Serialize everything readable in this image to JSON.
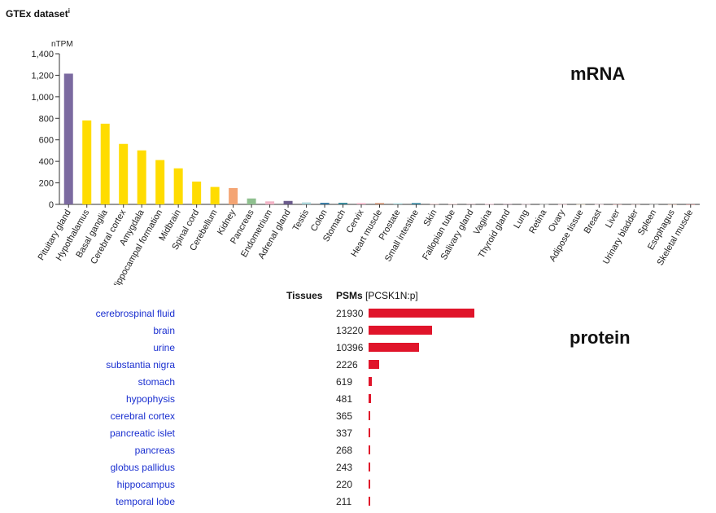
{
  "header": {
    "title": "GTEx dataset",
    "info_mark": "i"
  },
  "labels": {
    "mrna": "mRNA",
    "protein": "protein"
  },
  "chart_data": [
    {
      "type": "bar",
      "ylabel": "nTPM",
      "ylim": [
        0,
        1400
      ],
      "yticks": [
        "0",
        "200",
        "400",
        "600",
        "800",
        "1,000",
        "1,200",
        "1,400"
      ],
      "ytick_values": [
        0,
        200,
        400,
        600,
        800,
        1000,
        1200,
        1400
      ],
      "categories": [
        "Pituitary gland",
        "Hypothalamus",
        "Basal ganglia",
        "Cerebral cortex",
        "Amygdala",
        "Hippocampal formation",
        "Midbrain",
        "Spinal cord",
        "Cerebellum",
        "Kidney",
        "Pancreas",
        "Endometrium",
        "Adrenal gland",
        "Testis",
        "Colon",
        "Stomach",
        "Cervix",
        "Heart muscle",
        "Prostate",
        "Small intestine",
        "Skin",
        "Fallopian tube",
        "Salivary gland",
        "Vagina",
        "Thyroid gland",
        "Lung",
        "Retina",
        "Ovary",
        "Adipose tissue",
        "Breast",
        "Liver",
        "Urinary bladder",
        "Spleen",
        "Esophagus",
        "Skeletal muscle"
      ],
      "values": [
        1215,
        780,
        750,
        562,
        502,
        412,
        335,
        212,
        162,
        152,
        55,
        28,
        32,
        18,
        15,
        15,
        12,
        12,
        10,
        12,
        5,
        5,
        5,
        4,
        4,
        3,
        2,
        2,
        2,
        2,
        1,
        1,
        1,
        1,
        1
      ],
      "colors": [
        "#7b6aa0",
        "#ffdc00",
        "#ffdc00",
        "#ffdc00",
        "#ffdc00",
        "#ffdc00",
        "#ffdc00",
        "#ffdc00",
        "#ffdc00",
        "#f4a574",
        "#8fc08f",
        "#f2b3c6",
        "#6b5b8c",
        "#a8d4d8",
        "#3a7ca5",
        "#3a8a9a",
        "#f2b3c6",
        "#c98a6a",
        "#a8d4d8",
        "#2a7f9a",
        "#e0b8b8",
        "#e8c4c4",
        "#c0a0a8",
        "#e8b0c0",
        "#9a7a8a",
        "#c8b0b8",
        "#b8b8b8",
        "#d8b0b8",
        "#d0c0a8",
        "#e0c0c8",
        "#d8a8a8",
        "#d0b8b8",
        "#c8c8c8",
        "#d0b0a0",
        "#c08080"
      ]
    },
    {
      "type": "bar",
      "orientation": "horizontal",
      "columns": {
        "tissue": "Tissues",
        "psm": "PSMs",
        "psm_suffix": "[PCSK1N:p]"
      },
      "categories": [
        "cerebrospinal fluid",
        "brain",
        "urine",
        "substantia nigra",
        "stomach",
        "hypophysis",
        "cerebral cortex",
        "pancreatic islet",
        "pancreas",
        "globus pallidus",
        "hippocampus",
        "temporal lobe"
      ],
      "values": [
        21930,
        13220,
        10396,
        2226,
        619,
        481,
        365,
        337,
        268,
        243,
        220,
        211
      ],
      "xlim": [
        0,
        21930
      ],
      "color": "#e0142a"
    }
  ]
}
